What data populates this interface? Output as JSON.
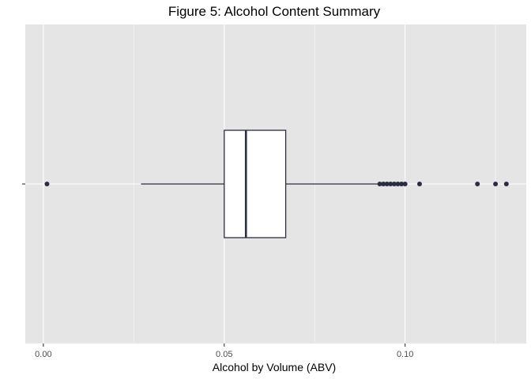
{
  "chart_data": {
    "type": "boxplot",
    "title": "Figure 5: Alcohol Content Summary",
    "xlabel": "Alcohol by Volume (ABV)",
    "ylabel": "",
    "xlim": [
      -0.005,
      0.1335
    ],
    "x_ticks": [
      {
        "value": 0.0,
        "label": "0.00"
      },
      {
        "value": 0.05,
        "label": "0.05"
      },
      {
        "value": 0.1,
        "label": "0.10"
      }
    ],
    "grid": true,
    "box": {
      "whisker_low": 0.027,
      "q1": 0.05,
      "median": 0.056,
      "q3": 0.067,
      "whisker_high": 0.093
    },
    "outliers": [
      0.001,
      0.093,
      0.094,
      0.095,
      0.096,
      0.097,
      0.098,
      0.099,
      0.1,
      0.104,
      0.12,
      0.125,
      0.128
    ],
    "colors": {
      "panel_bg": "#e5e5e5",
      "grid_major": "#ffffff",
      "box_line": "#2b2d42",
      "box_fill": "#ffffff",
      "point": "#2b2d42"
    }
  }
}
